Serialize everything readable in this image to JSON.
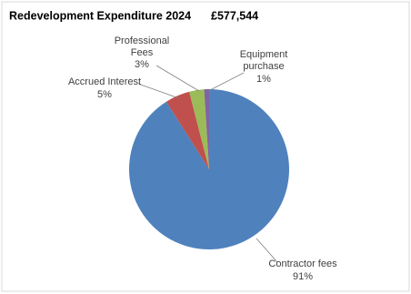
{
  "chart_data": {
    "type": "pie",
    "title": "Redevelopment Expenditure 2024",
    "total": "£577,544",
    "categories": [
      "Contractor fees",
      "Accrued Interest",
      "Professional Fees",
      "Equipment purchase"
    ],
    "values": [
      91,
      5,
      3,
      1
    ],
    "value_labels": [
      "91%",
      "5%",
      "3%",
      "1%"
    ],
    "colors": [
      "#4f81bd",
      "#c0504d",
      "#9bbb59",
      "#8064a2"
    ]
  }
}
